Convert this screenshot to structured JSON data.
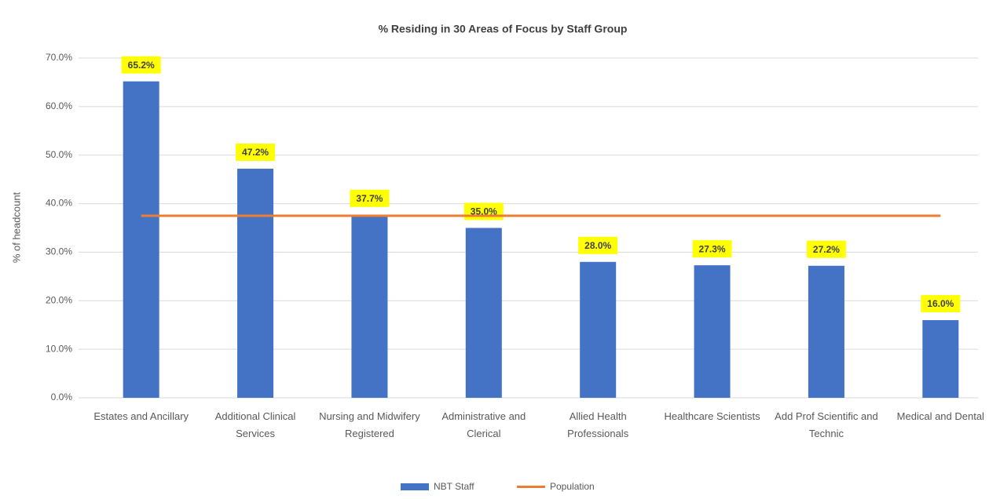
{
  "chart_data": {
    "type": "bar",
    "title": "% Residing in 30 Areas of Focus by Staff Group",
    "y_label": "% of headcount",
    "categories": [
      "Estates and Ancillary",
      "Additional Clinical Services",
      "Nursing and Midwifery Registered",
      "Administrative and Clerical",
      "Allied Health Professionals",
      "Healthcare Scientists",
      "Add Prof Scientific and Technic",
      "Medical and Dental"
    ],
    "series": [
      {
        "name": "NBT Staff",
        "type": "bar",
        "color": "#4472c4",
        "values": [
          65.2,
          47.2,
          37.7,
          35.0,
          28.0,
          27.3,
          27.2,
          16.0
        ],
        "value_labels": [
          "65.2%",
          "47.2%",
          "37.7%",
          "35.0%",
          "28.0%",
          "27.3%",
          "27.2%",
          "16.0%"
        ]
      },
      {
        "name": "Population",
        "type": "line",
        "color": "#ed7d31",
        "values": [
          37.5,
          37.5,
          37.5,
          37.5,
          37.5,
          37.5,
          37.5,
          37.5
        ]
      }
    ],
    "ylim": [
      0,
      70
    ],
    "yticks": [
      {
        "value": 0,
        "label": "0.0%"
      },
      {
        "value": 10,
        "label": "10.0%"
      },
      {
        "value": 20,
        "label": "20.0%"
      },
      {
        "value": 30,
        "label": "30.0%"
      },
      {
        "value": 40,
        "label": "40.0%"
      },
      {
        "value": 50,
        "label": "50.0%"
      },
      {
        "value": 60,
        "label": "60.0%"
      },
      {
        "value": 70,
        "label": "70.0%"
      }
    ],
    "grid": true,
    "legend": "bottom"
  }
}
